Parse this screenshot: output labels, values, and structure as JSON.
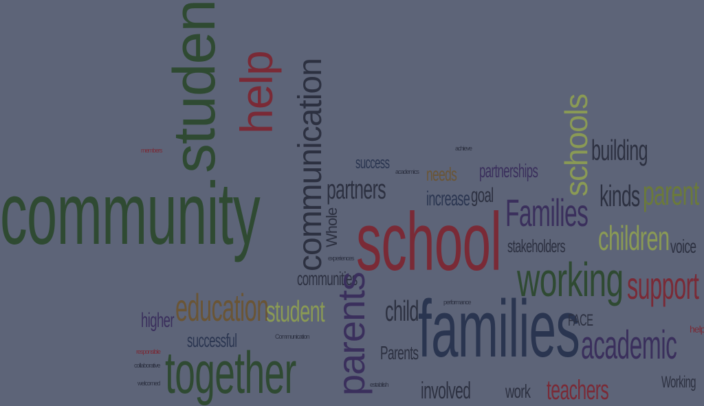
{
  "words": {
    "community": "community",
    "students": "students",
    "help": "help",
    "communication": "communication",
    "school": "school",
    "families": "families",
    "Families": "Families",
    "working": "working",
    "together": "together",
    "parents": "parents",
    "education": "education",
    "student": "student",
    "partners": "partners",
    "schools": "schools",
    "building": "building",
    "parent": "parent",
    "kinds": "kinds",
    "children": "children",
    "support": "support",
    "academic": "academic",
    "teachers": "teachers",
    "involved": "involved",
    "work": "work",
    "child": "child",
    "Parents": "Parents",
    "higher": "higher",
    "successful": "successful",
    "communities": "communities",
    "stakeholders": "stakeholders",
    "partnerships": "partnerships",
    "increase": "increase",
    "needs": "needs",
    "success": "success",
    "goal": "goal",
    "voice": "voice",
    "Working": "Working",
    "Whole": "Whole",
    "FACE": "FACE",
    "help_small": "help",
    "collaborative": "collaborative",
    "responsible": "responsible",
    "welcomed": "welcomed",
    "members": "members",
    "achieve": "achieve",
    "establish": "establish",
    "Communication": "Communication",
    "performance": "performance",
    "experiences": "experiences",
    "academics": "academics"
  }
}
